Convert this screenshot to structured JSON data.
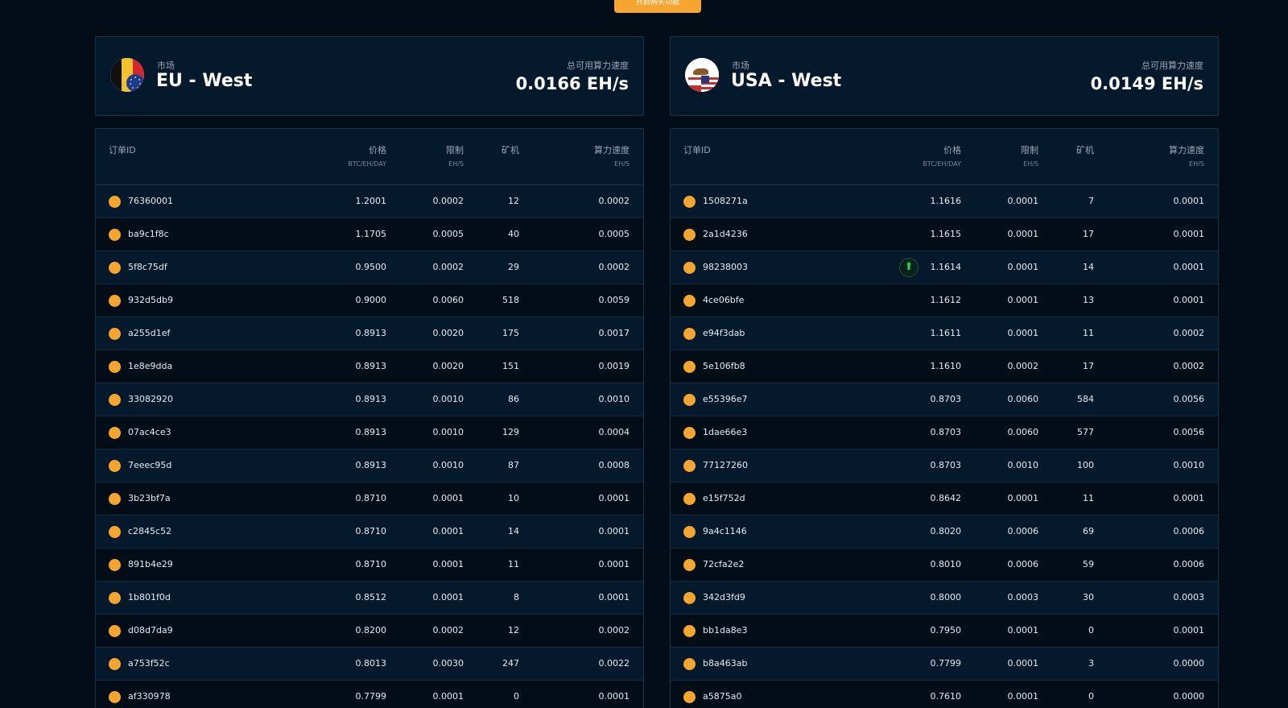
{
  "top_button": {
    "label": "开启购买功能"
  },
  "markets": [
    {
      "market_label": "市场",
      "market_name": "EU - West",
      "speed_label": "总可用算力速度",
      "speed_value": "0.0166 EH/s",
      "flag_icon": "eu-flag-icon",
      "headers": {
        "id": "订单ID",
        "price": "价格",
        "price_unit": "BTC/EH/DAY",
        "limit": "限制",
        "limit_unit": "EH/S",
        "miners": "矿机",
        "speed": "算力速度",
        "speed_unit": "EH/S"
      },
      "rows": [
        {
          "id": "76360001",
          "price": "1.2001",
          "limit": "0.0002",
          "miners": "12",
          "speed": "0.0002"
        },
        {
          "id": "ba9c1f8c",
          "price": "1.1705",
          "limit": "0.0005",
          "miners": "40",
          "speed": "0.0005"
        },
        {
          "id": "5f8c75df",
          "price": "0.9500",
          "limit": "0.0002",
          "miners": "29",
          "speed": "0.0002"
        },
        {
          "id": "932d5db9",
          "price": "0.9000",
          "limit": "0.0060",
          "miners": "518",
          "speed": "0.0059"
        },
        {
          "id": "a255d1ef",
          "price": "0.8913",
          "limit": "0.0020",
          "miners": "175",
          "speed": "0.0017"
        },
        {
          "id": "1e8e9dda",
          "price": "0.8913",
          "limit": "0.0020",
          "miners": "151",
          "speed": "0.0019"
        },
        {
          "id": "33082920",
          "price": "0.8913",
          "limit": "0.0010",
          "miners": "86",
          "speed": "0.0010"
        },
        {
          "id": "07ac4ce3",
          "price": "0.8913",
          "limit": "0.0010",
          "miners": "129",
          "speed": "0.0004"
        },
        {
          "id": "7eeec95d",
          "price": "0.8913",
          "limit": "0.0010",
          "miners": "87",
          "speed": "0.0008"
        },
        {
          "id": "3b23bf7a",
          "price": "0.8710",
          "limit": "0.0001",
          "miners": "10",
          "speed": "0.0001"
        },
        {
          "id": "c2845c52",
          "price": "0.8710",
          "limit": "0.0001",
          "miners": "14",
          "speed": "0.0001"
        },
        {
          "id": "891b4e29",
          "price": "0.8710",
          "limit": "0.0001",
          "miners": "11",
          "speed": "0.0001"
        },
        {
          "id": "1b801f0d",
          "price": "0.8512",
          "limit": "0.0001",
          "miners": "8",
          "speed": "0.0001"
        },
        {
          "id": "d08d7da9",
          "price": "0.8200",
          "limit": "0.0002",
          "miners": "12",
          "speed": "0.0002"
        },
        {
          "id": "a753f52c",
          "price": "0.8013",
          "limit": "0.0030",
          "miners": "247",
          "speed": "0.0022"
        },
        {
          "id": "af330978",
          "price": "0.7799",
          "limit": "0.0001",
          "miners": "0",
          "speed": "0.0001"
        }
      ]
    },
    {
      "market_label": "市场",
      "market_name": "USA - West",
      "speed_label": "总可用算力速度",
      "speed_value": "0.0149 EH/s",
      "flag_icon": "california-usa-flag-icon",
      "headers": {
        "id": "订单ID",
        "price": "价格",
        "price_unit": "BTC/EH/DAY",
        "limit": "限制",
        "limit_unit": "EH/S",
        "miners": "矿机",
        "speed": "算力速度",
        "speed_unit": "EH/S"
      },
      "rows": [
        {
          "id": "1508271a",
          "price": "1.1616",
          "limit": "0.0001",
          "miners": "7",
          "speed": "0.0001"
        },
        {
          "id": "2a1d4236",
          "price": "1.1615",
          "limit": "0.0001",
          "miners": "17",
          "speed": "0.0001"
        },
        {
          "id": "98238003",
          "price": "1.1614",
          "limit": "0.0001",
          "miners": "14",
          "speed": "0.0001"
        },
        {
          "id": "4ce06bfe",
          "price": "1.1612",
          "limit": "0.0001",
          "miners": "13",
          "speed": "0.0001"
        },
        {
          "id": "e94f3dab",
          "price": "1.1611",
          "limit": "0.0001",
          "miners": "11",
          "speed": "0.0002"
        },
        {
          "id": "5e106fb8",
          "price": "1.1610",
          "limit": "0.0002",
          "miners": "17",
          "speed": "0.0002"
        },
        {
          "id": "e55396e7",
          "price": "0.8703",
          "limit": "0.0060",
          "miners": "584",
          "speed": "0.0056"
        },
        {
          "id": "1dae66e3",
          "price": "0.8703",
          "limit": "0.0060",
          "miners": "577",
          "speed": "0.0056"
        },
        {
          "id": "77127260",
          "price": "0.8703",
          "limit": "0.0010",
          "miners": "100",
          "speed": "0.0010"
        },
        {
          "id": "e15f752d",
          "price": "0.8642",
          "limit": "0.0001",
          "miners": "11",
          "speed": "0.0001"
        },
        {
          "id": "9a4c1146",
          "price": "0.8020",
          "limit": "0.0006",
          "miners": "69",
          "speed": "0.0006"
        },
        {
          "id": "72cfa2e2",
          "price": "0.8010",
          "limit": "0.0006",
          "miners": "59",
          "speed": "0.0006"
        },
        {
          "id": "342d3fd9",
          "price": "0.8000",
          "limit": "0.0003",
          "miners": "30",
          "speed": "0.0003"
        },
        {
          "id": "bb1da8e3",
          "price": "0.7950",
          "limit": "0.0001",
          "miners": "0",
          "speed": "0.0001"
        },
        {
          "id": "b8a463ab",
          "price": "0.7799",
          "limit": "0.0001",
          "miners": "3",
          "speed": "0.0000"
        },
        {
          "id": "a5875a0",
          "price": "0.7610",
          "limit": "0.0001",
          "miners": "0",
          "speed": "0.0000"
        }
      ]
    }
  ]
}
